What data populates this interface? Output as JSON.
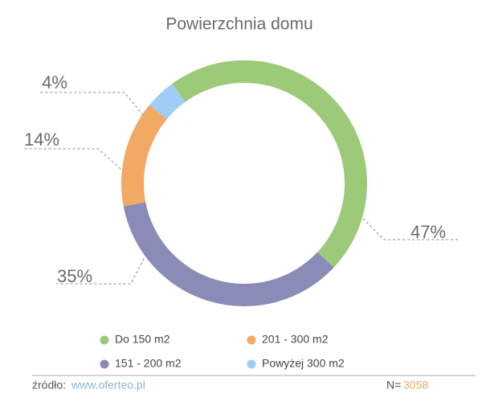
{
  "chart_data": {
    "type": "donut",
    "title": "Powierzchnia domu",
    "categories": [
      "Do 150 m2",
      "151 - 200 m2",
      "201 - 300 m2",
      "Powyżej 300 m2"
    ],
    "values": [
      47,
      35,
      14,
      4
    ],
    "value_labels": [
      "47%",
      "35%",
      "14%",
      "4%"
    ],
    "colors": [
      "#9dca79",
      "#8b8bb7",
      "#f2a964",
      "#9fcdf5"
    ]
  },
  "footer": {
    "source_label": "źródło:",
    "source_link": "www.oferteo.pl",
    "n_label": "N=",
    "n_value": "3058"
  }
}
